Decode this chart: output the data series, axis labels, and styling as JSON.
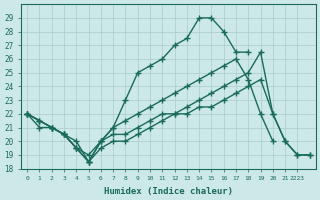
{
  "xlabel": "Humidex (Indice chaleur)",
  "xlim": [
    -0.5,
    23.5
  ],
  "ylim": [
    18,
    30
  ],
  "yticks": [
    18,
    19,
    20,
    21,
    22,
    23,
    24,
    25,
    26,
    27,
    28,
    29
  ],
  "background_color": "#cce8e8",
  "grid_color": "#aacccc",
  "line_color": "#1a6b5a",
  "line_width": 1.0,
  "marker": "+",
  "marker_size": 4,
  "lines": [
    {
      "x": [
        0,
        1,
        2,
        3,
        4,
        5,
        6,
        7,
        8,
        9,
        10,
        11,
        12,
        13,
        14,
        15,
        16,
        17,
        18
      ],
      "y": [
        22,
        21,
        21,
        20.5,
        20,
        18.5,
        20,
        21,
        23,
        25,
        25.5,
        26,
        27,
        27.5,
        29,
        29,
        28,
        26.5,
        26.5
      ]
    },
    {
      "x": [
        0,
        1,
        2,
        3,
        4,
        5,
        6,
        7,
        8,
        9,
        10,
        11,
        12,
        13,
        14,
        15,
        16,
        17,
        18,
        19,
        20
      ],
      "y": [
        22,
        21.5,
        21,
        20.5,
        19.5,
        19,
        20,
        21,
        21.5,
        22,
        22.5,
        23,
        23.5,
        24,
        24.5,
        25,
        25.5,
        26,
        24.5,
        22,
        20
      ]
    },
    {
      "x": [
        0,
        1,
        2,
        3,
        4,
        5,
        6,
        7,
        8,
        9,
        10,
        11,
        12,
        13,
        14,
        15,
        16,
        17,
        18,
        19,
        20,
        21,
        22,
        23
      ],
      "y": [
        22,
        21.5,
        21,
        20.5,
        19.5,
        18.5,
        20,
        20.5,
        20.5,
        21,
        21.5,
        22,
        22,
        22.5,
        23,
        23.5,
        24,
        24.5,
        25,
        26.5,
        22,
        20,
        19,
        19
      ]
    },
    {
      "x": [
        0,
        1,
        2,
        3,
        4,
        5,
        6,
        7,
        8,
        9,
        10,
        11,
        12,
        13,
        14,
        15,
        16,
        17,
        18,
        19,
        20,
        21,
        22,
        23
      ],
      "y": [
        22,
        21.5,
        21,
        20.5,
        19.5,
        18.5,
        19.5,
        20,
        20,
        20.5,
        21,
        21.5,
        22,
        22,
        22.5,
        22.5,
        23,
        23.5,
        24,
        24.5,
        22,
        20,
        19,
        19
      ]
    }
  ],
  "xtick_positions": [
    0,
    1,
    2,
    3,
    4,
    5,
    6,
    7,
    8,
    9,
    10,
    11,
    12,
    13,
    14,
    15,
    16,
    17,
    18,
    19,
    20,
    21,
    22
  ],
  "xtick_labels": [
    "0",
    "1",
    "2",
    "3",
    "4",
    "5",
    "6",
    "7",
    "8",
    "9",
    "10",
    "11",
    "12",
    "13",
    "14",
    "15",
    "16",
    "17",
    "18",
    "19",
    "20",
    "21",
    "2223"
  ]
}
